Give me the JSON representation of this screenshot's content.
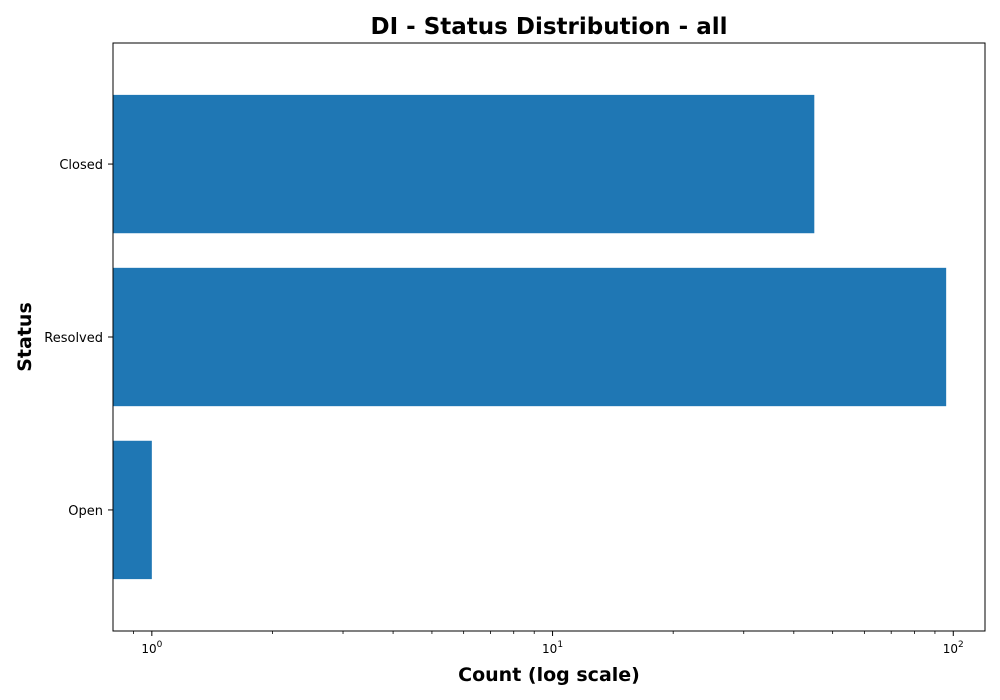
{
  "chart_data": {
    "type": "bar",
    "orientation": "horizontal",
    "title": "DI - Status Distribution - all",
    "xlabel": "Count (log scale)",
    "ylabel": "Status",
    "categories": [
      "Closed",
      "Resolved",
      "Open"
    ],
    "values": [
      45,
      96,
      1
    ],
    "x_scale": "log",
    "xlim": [
      0.8,
      120
    ],
    "x_ticks": [
      {
        "value": 1,
        "base": "10",
        "exponent": "0"
      },
      {
        "value": 10,
        "base": "10",
        "exponent": "1"
      },
      {
        "value": 100,
        "base": "10",
        "exponent": "2"
      }
    ],
    "bar_color": "#1f77b4",
    "grid": false,
    "legend": "none"
  }
}
